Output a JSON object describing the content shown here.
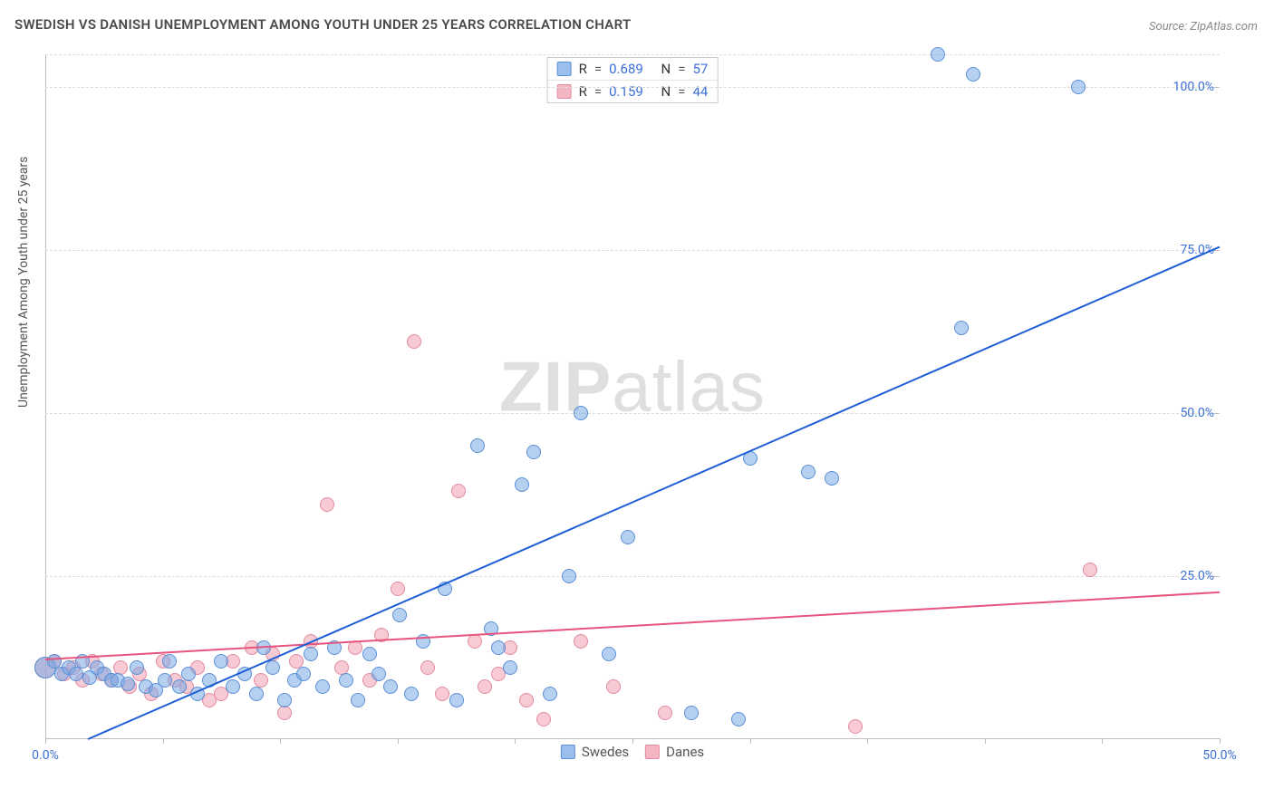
{
  "title": "SWEDISH VS DANISH UNEMPLOYMENT AMONG YOUTH UNDER 25 YEARS CORRELATION CHART",
  "source": "Source: ZipAtlas.com",
  "ylabel": "Unemployment Among Youth under 25 years",
  "watermark_a": "ZIP",
  "watermark_b": "atlas",
  "chart": {
    "type": "scatter",
    "xlim": [
      0,
      50
    ],
    "ylim": [
      0,
      105
    ],
    "background_color": "#ffffff",
    "grid_color": "#dcdcdc",
    "axis_color": "#bfbfbf",
    "label_color": "#3b6fd6",
    "marker_radius": 8,
    "marker_radius_large": 12,
    "line_width": 2,
    "y_ticks": [
      25,
      50,
      75,
      100
    ],
    "y_tick_labels": [
      "25.0%",
      "50.0%",
      "75.0%",
      "100.0%"
    ],
    "x_ticks": [
      0,
      5,
      10,
      15,
      20,
      25,
      30,
      35,
      40,
      45,
      50
    ],
    "x_tick_labels": [
      "0.0%",
      "",
      "",
      "",
      "",
      "",
      "",
      "",
      "",
      "",
      "50.0%"
    ],
    "x_gridlines": [
      0,
      25,
      50,
      75,
      100
    ],
    "series": {
      "swedes": {
        "label": "Swedes",
        "color_fill": "rgba(120,170,230,0.55)",
        "color_stroke": "#5b8fd6",
        "R": "0.689",
        "N": "57",
        "regression": {
          "x1": 1.8,
          "y1": 0,
          "x2": 50,
          "y2": 75.5,
          "color": "#1f5fd6"
        },
        "points": [
          [
            0.0,
            11,
            12
          ],
          [
            0.4,
            12,
            8
          ],
          [
            0.7,
            10,
            8
          ],
          [
            1.0,
            11,
            8
          ],
          [
            1.3,
            10,
            8
          ],
          [
            1.6,
            12,
            8
          ],
          [
            1.9,
            9.5,
            8
          ],
          [
            2.2,
            11,
            8
          ],
          [
            2.5,
            10,
            8
          ],
          [
            2.8,
            9,
            8
          ],
          [
            3.1,
            9,
            8
          ],
          [
            3.5,
            8.5,
            8
          ],
          [
            3.9,
            11,
            8
          ],
          [
            4.3,
            8,
            8
          ],
          [
            4.7,
            7.5,
            8
          ],
          [
            5.1,
            9,
            8
          ],
          [
            5.3,
            12,
            8
          ],
          [
            5.7,
            8,
            8
          ],
          [
            6.1,
            10,
            8
          ],
          [
            6.5,
            7,
            8
          ],
          [
            7.0,
            9,
            8
          ],
          [
            7.5,
            12,
            8
          ],
          [
            8.0,
            8,
            8
          ],
          [
            8.5,
            10,
            8
          ],
          [
            9.0,
            7,
            8
          ],
          [
            9.3,
            14,
            8
          ],
          [
            9.7,
            11,
            8
          ],
          [
            10.2,
            6,
            8
          ],
          [
            10.6,
            9,
            8
          ],
          [
            11.0,
            10,
            8
          ],
          [
            11.3,
            13,
            8
          ],
          [
            11.8,
            8,
            8
          ],
          [
            12.3,
            14,
            8
          ],
          [
            12.8,
            9,
            8
          ],
          [
            13.3,
            6,
            8
          ],
          [
            13.8,
            13,
            8
          ],
          [
            14.2,
            10,
            8
          ],
          [
            14.7,
            8,
            8
          ],
          [
            15.1,
            19,
            8
          ],
          [
            15.6,
            7,
            8
          ],
          [
            16.1,
            15,
            8
          ],
          [
            17.0,
            23,
            8
          ],
          [
            17.5,
            6,
            8
          ],
          [
            18.4,
            45,
            8
          ],
          [
            19.0,
            17,
            8
          ],
          [
            19.3,
            14,
            8
          ],
          [
            19.8,
            11,
            8
          ],
          [
            20.3,
            39,
            8
          ],
          [
            20.8,
            44,
            8
          ],
          [
            21.5,
            7,
            8
          ],
          [
            22.3,
            25,
            8
          ],
          [
            22.8,
            50,
            8
          ],
          [
            24.0,
            13,
            8
          ],
          [
            24.8,
            31,
            8
          ],
          [
            27.5,
            4,
            8
          ],
          [
            29.5,
            3,
            8
          ],
          [
            30.0,
            43,
            8
          ],
          [
            32.5,
            41,
            8
          ],
          [
            33.5,
            40,
            8
          ],
          [
            38.0,
            105,
            8
          ],
          [
            39.0,
            63,
            8
          ],
          [
            39.5,
            102,
            8
          ],
          [
            44.0,
            100,
            8
          ]
        ]
      },
      "danes": {
        "label": "Danes",
        "color_fill": "rgba(240,150,170,0.50)",
        "color_stroke": "#e38aa0",
        "R": "0.159",
        "N": "44",
        "regression": {
          "x1": 0,
          "y1": 12.2,
          "x2": 50,
          "y2": 22.5,
          "color": "#e7557e"
        },
        "points": [
          [
            0.0,
            11,
            12
          ],
          [
            0.4,
            12,
            8
          ],
          [
            0.8,
            10,
            8
          ],
          [
            1.2,
            11,
            8
          ],
          [
            1.6,
            9,
            8
          ],
          [
            2.0,
            12,
            8
          ],
          [
            2.4,
            10,
            8
          ],
          [
            2.8,
            9,
            8
          ],
          [
            3.2,
            11,
            8
          ],
          [
            3.6,
            8,
            8
          ],
          [
            4.0,
            10,
            8
          ],
          [
            4.5,
            7,
            8
          ],
          [
            5.0,
            12,
            8
          ],
          [
            5.5,
            9,
            8
          ],
          [
            6.0,
            8,
            8
          ],
          [
            6.5,
            11,
            8
          ],
          [
            7.0,
            6,
            8
          ],
          [
            7.5,
            7,
            8
          ],
          [
            8.0,
            12,
            8
          ],
          [
            8.8,
            14,
            8
          ],
          [
            9.2,
            9,
            8
          ],
          [
            9.7,
            13,
            8
          ],
          [
            10.2,
            4,
            8
          ],
          [
            10.7,
            12,
            8
          ],
          [
            11.3,
            15,
            8
          ],
          [
            12.0,
            36,
            8
          ],
          [
            12.6,
            11,
            8
          ],
          [
            13.2,
            14,
            8
          ],
          [
            13.8,
            9,
            8
          ],
          [
            14.3,
            16,
            8
          ],
          [
            15.0,
            23,
            8
          ],
          [
            15.7,
            61,
            8
          ],
          [
            16.3,
            11,
            8
          ],
          [
            16.9,
            7,
            8
          ],
          [
            17.6,
            38,
            8
          ],
          [
            18.3,
            15,
            8
          ],
          [
            18.7,
            8,
            8
          ],
          [
            19.3,
            10,
            8
          ],
          [
            19.8,
            14,
            8
          ],
          [
            20.5,
            6,
            8
          ],
          [
            21.2,
            3,
            8
          ],
          [
            22.8,
            15,
            8
          ],
          [
            24.2,
            8,
            8
          ],
          [
            26.4,
            4,
            8
          ],
          [
            34.5,
            2,
            8
          ],
          [
            44.5,
            26,
            8
          ]
        ]
      }
    },
    "top_legend": [
      {
        "swatch": "sw",
        "R": "0.689",
        "N": "57"
      },
      {
        "swatch": "da",
        "R": "0.159",
        "N": "44"
      }
    ],
    "bottom_legend": [
      {
        "swatch": "sw",
        "label": "Swedes"
      },
      {
        "swatch": "da",
        "label": "Danes"
      }
    ]
  }
}
